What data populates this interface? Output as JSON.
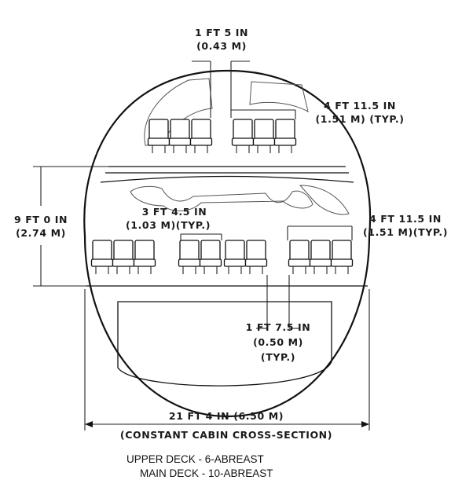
{
  "labels": {
    "upper_aisle_l1": "1 FT 5 IN",
    "upper_aisle_l2": "(0.43 M)",
    "upper_seat_l1": "4 FT 11.5 IN",
    "upper_seat_l2": "(1.51 M) (TYP.)",
    "deck_height_l1": "9 FT 0 IN",
    "deck_height_l2": "(2.74 M)",
    "main_center_l1": "3 FT 4.5 IN",
    "main_center_l2": "(1.03 M)(TYP.)",
    "main_seat_l1": "4 FT 11.5 IN",
    "main_seat_l2": "(1.51 M)(TYP.)",
    "main_aisle_l1": "1 FT 7.5 IN",
    "main_aisle_l2": "(0.50 M)",
    "main_aisle_l3": "(TYP.)",
    "width_l1": "21 FT 4 IN (6.50 M)",
    "width_l2": "(CONSTANT CABIN CROSS-SECTION)"
  },
  "caption": {
    "upper": "UPPER DECK - 6-ABREAST",
    "main": "MAIN DECK - 10-ABREAST"
  }
}
